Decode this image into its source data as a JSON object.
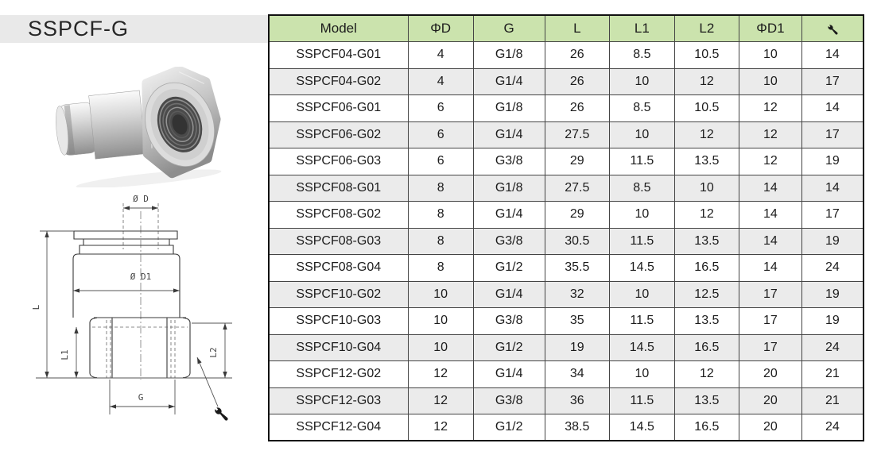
{
  "header": {
    "title": "SSPCF-G"
  },
  "diagram": {
    "labels": {
      "d": "Ø D",
      "d1": "Ø D1",
      "l": "L",
      "l1": "L1",
      "l2": "L2",
      "g": "G"
    },
    "callout_icon": "wrench-icon"
  },
  "table": {
    "columns": [
      "Model",
      "ΦD",
      "G",
      "L",
      "L1",
      "L2",
      "ΦD1"
    ],
    "last_column_icon": "wrench-icon",
    "rows": [
      [
        "SSPCF04-G01",
        "4",
        "G1/8",
        "26",
        "8.5",
        "10.5",
        "10",
        "14"
      ],
      [
        "SSPCF04-G02",
        "4",
        "G1/4",
        "26",
        "10",
        "12",
        "10",
        "17"
      ],
      [
        "SSPCF06-G01",
        "6",
        "G1/8",
        "26",
        "8.5",
        "10.5",
        "12",
        "14"
      ],
      [
        "SSPCF06-G02",
        "6",
        "G1/4",
        "27.5",
        "10",
        "12",
        "12",
        "17"
      ],
      [
        "SSPCF06-G03",
        "6",
        "G3/8",
        "29",
        "11.5",
        "13.5",
        "12",
        "19"
      ],
      [
        "SSPCF08-G01",
        "8",
        "G1/8",
        "27.5",
        "8.5",
        "10",
        "14",
        "14"
      ],
      [
        "SSPCF08-G02",
        "8",
        "G1/4",
        "29",
        "10",
        "12",
        "14",
        "17"
      ],
      [
        "SSPCF08-G03",
        "8",
        "G3/8",
        "30.5",
        "11.5",
        "13.5",
        "14",
        "19"
      ],
      [
        "SSPCF08-G04",
        "8",
        "G1/2",
        "35.5",
        "14.5",
        "16.5",
        "14",
        "24"
      ],
      [
        "SSPCF10-G02",
        "10",
        "G1/4",
        "32",
        "10",
        "12.5",
        "17",
        "19"
      ],
      [
        "SSPCF10-G03",
        "10",
        "G3/8",
        "35",
        "11.5",
        "13.5",
        "17",
        "19"
      ],
      [
        "SSPCF10-G04",
        "10",
        "G1/2",
        "19",
        "14.5",
        "16.5",
        "17",
        "24"
      ],
      [
        "SSPCF12-G02",
        "12",
        "G1/4",
        "34",
        "10",
        "12",
        "20",
        "21"
      ],
      [
        "SSPCF12-G03",
        "12",
        "G3/8",
        "36",
        "11.5",
        "13.5",
        "20",
        "21"
      ],
      [
        "SSPCF12-G04",
        "12",
        "G1/2",
        "38.5",
        "14.5",
        "16.5",
        "20",
        "24"
      ]
    ]
  },
  "colors": {
    "header_green": "#cbe3ad",
    "row_alt_gray": "#ebebeb",
    "banner_gray": "#e9e9e9",
    "border_black": "#111111"
  }
}
